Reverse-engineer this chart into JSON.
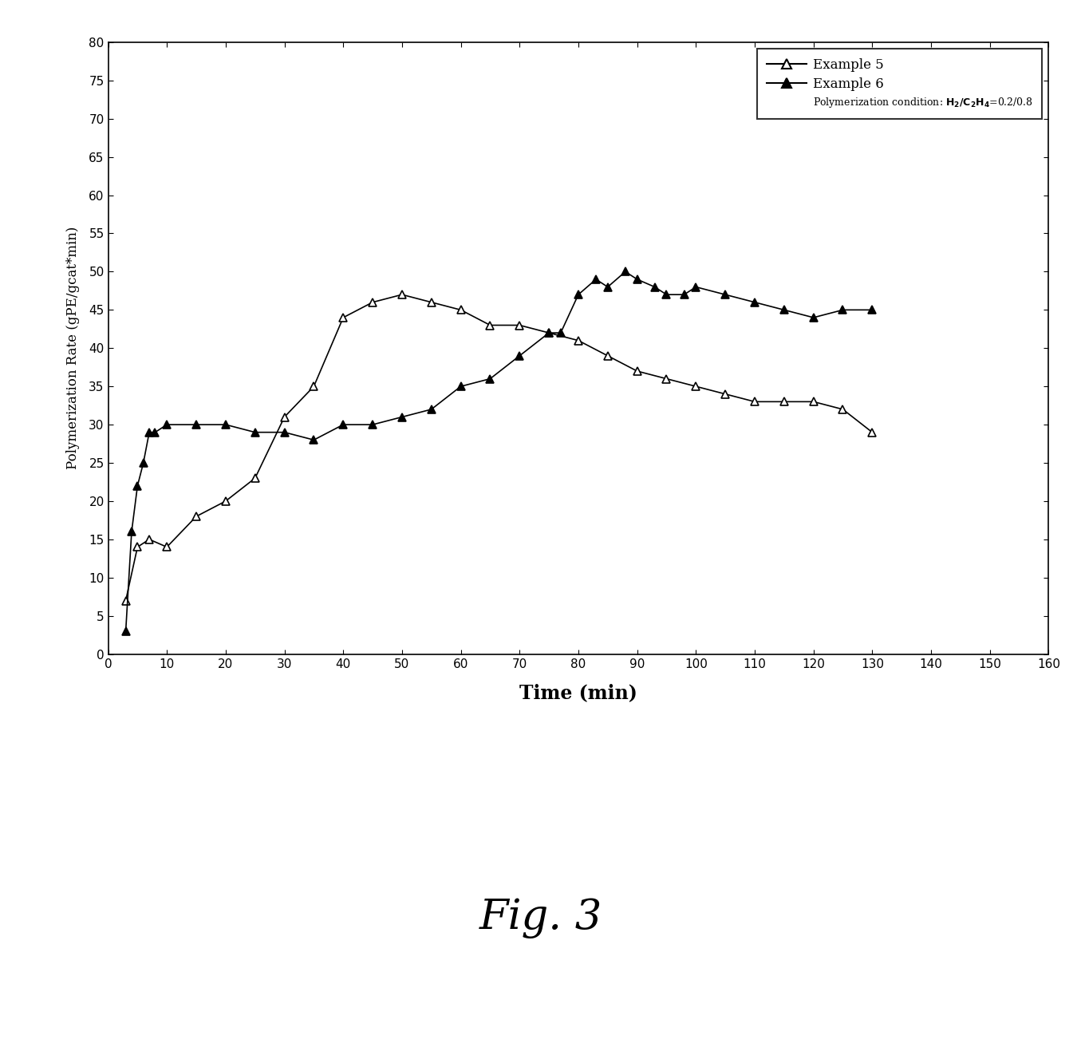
{
  "example5_x": [
    3,
    5,
    7,
    10,
    15,
    20,
    25,
    30,
    35,
    40,
    45,
    50,
    55,
    60,
    65,
    70,
    75,
    80,
    85,
    90,
    95,
    100,
    105,
    110,
    115,
    120,
    125,
    130
  ],
  "example5_y": [
    7,
    14,
    15,
    14,
    18,
    20,
    23,
    31,
    35,
    44,
    46,
    47,
    46,
    45,
    43,
    43,
    42,
    41,
    39,
    37,
    36,
    35,
    34,
    33,
    33,
    33,
    32,
    29
  ],
  "example6_x": [
    3,
    4,
    5,
    6,
    7,
    8,
    10,
    15,
    20,
    25,
    30,
    35,
    40,
    45,
    50,
    55,
    60,
    65,
    70,
    75,
    77,
    80,
    83,
    85,
    88,
    90,
    93,
    95,
    98,
    100,
    105,
    110,
    115,
    120,
    125,
    130
  ],
  "example6_y": [
    3,
    16,
    22,
    25,
    29,
    29,
    30,
    30,
    30,
    29,
    29,
    28,
    30,
    30,
    31,
    32,
    35,
    36,
    39,
    42,
    42,
    47,
    49,
    48,
    50,
    49,
    48,
    47,
    47,
    48,
    47,
    46,
    45,
    44,
    45,
    45
  ],
  "xlabel": "Time (min)",
  "ylabel": "Polymerization Rate (gPE/gcat*min)",
  "xlim": [
    0,
    160
  ],
  "ylim": [
    0,
    80
  ],
  "xticks": [
    0,
    10,
    20,
    30,
    40,
    50,
    60,
    70,
    80,
    90,
    100,
    110,
    120,
    130,
    140,
    150,
    160
  ],
  "yticks": [
    0,
    5,
    10,
    15,
    20,
    25,
    30,
    35,
    40,
    45,
    50,
    55,
    60,
    65,
    70,
    75,
    80
  ],
  "legend_label5": "Example 5",
  "legend_label6": "Example 6",
  "condition_text": "Polymerization condition: ",
  "condition_formula": "$\\mathbf{H_2/C_2H_4}$=0.2/0.8",
  "figure_label": "Fig. 3",
  "color": "#000000",
  "background": "#ffffff"
}
